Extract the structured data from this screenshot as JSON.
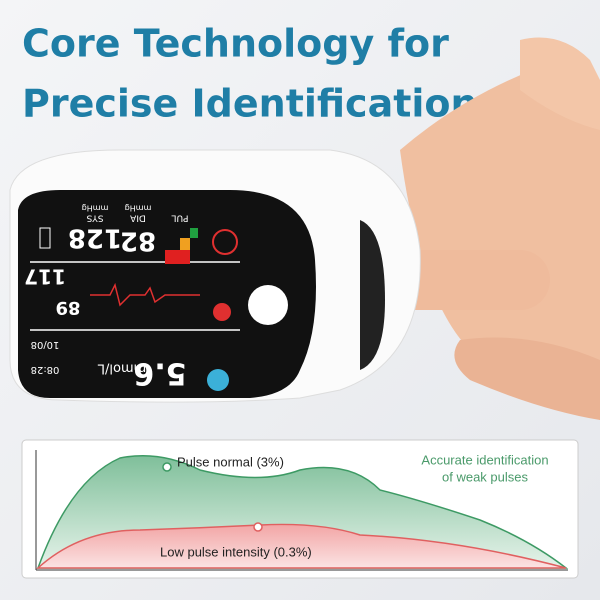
{
  "header": {
    "title_lines": [
      "Core Technology for",
      "Precise Identification"
    ]
  },
  "device": {
    "sys_label": "SYS",
    "sys_unit": "mmHg",
    "sys": 128,
    "dia_label": "DIA",
    "dia_unit": "mmHg",
    "dia": 82,
    "pul_label": "PUL",
    "readings": [
      117,
      89
    ],
    "glucose": 5.6,
    "glucose_unit": "mmol/L",
    "date": "10/08",
    "time": "08:28"
  },
  "graph": {
    "upper_label": "Pulse normal (3%)",
    "lower_label": "Low pulse intensity (0.3%)",
    "note_lines": [
      "Accurate identification",
      "of weak pulses"
    ]
  }
}
